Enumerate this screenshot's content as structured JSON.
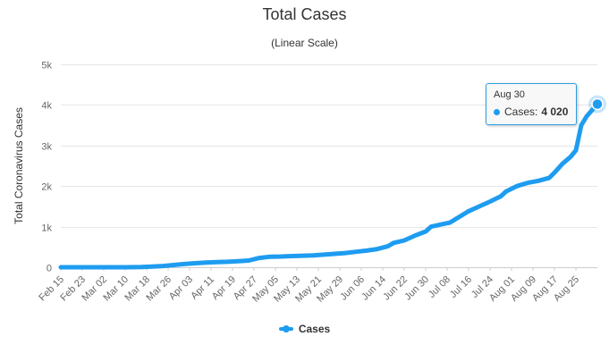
{
  "chart_data": {
    "type": "line",
    "title": "Total Cases",
    "subtitle": "(Linear Scale)",
    "xlabel": "",
    "ylabel": "Total Coronavirus Cases",
    "ylim": [
      0,
      5000
    ],
    "y_ticks": [
      0,
      1000,
      2000,
      3000,
      4000,
      5000
    ],
    "y_tick_labels": [
      "0",
      "1k",
      "2k",
      "3k",
      "4k",
      "5k"
    ],
    "x_tick_labels": [
      "Feb 15",
      "Feb 23",
      "Mar 02",
      "Mar 10",
      "Mar 18",
      "Mar 26",
      "Apr 03",
      "Apr 11",
      "Apr 19",
      "Apr 27",
      "May 05",
      "May 13",
      "May 21",
      "May 29",
      "Jun 06",
      "Jun 14",
      "Jun 22",
      "Jun 30",
      "Jul 08",
      "Jul 16",
      "Jul 24",
      "Aug 01",
      "Aug 09",
      "Aug 17",
      "Aug 25"
    ],
    "grid": true,
    "legend": "bottom-center",
    "series": [
      {
        "name": "Cases",
        "color": "#1e9cf0",
        "points": [
          [
            0,
            0
          ],
          [
            8,
            0
          ],
          [
            16,
            0
          ],
          [
            24,
            0
          ],
          [
            30,
            5
          ],
          [
            34,
            15
          ],
          [
            38,
            30
          ],
          [
            42,
            55
          ],
          [
            46,
            80
          ],
          [
            50,
            100
          ],
          [
            54,
            115
          ],
          [
            58,
            125
          ],
          [
            62,
            135
          ],
          [
            66,
            150
          ],
          [
            70,
            165
          ],
          [
            74,
            230
          ],
          [
            78,
            260
          ],
          [
            82,
            265
          ],
          [
            86,
            275
          ],
          [
            90,
            285
          ],
          [
            94,
            290
          ],
          [
            98,
            310
          ],
          [
            102,
            330
          ],
          [
            106,
            350
          ],
          [
            110,
            380
          ],
          [
            114,
            410
          ],
          [
            118,
            450
          ],
          [
            122,
            520
          ],
          [
            124,
            600
          ],
          [
            128,
            660
          ],
          [
            132,
            780
          ],
          [
            136,
            880
          ],
          [
            138,
            1000
          ],
          [
            142,
            1060
          ],
          [
            145,
            1100
          ],
          [
            148,
            1220
          ],
          [
            152,
            1380
          ],
          [
            156,
            1500
          ],
          [
            160,
            1620
          ],
          [
            164,
            1750
          ],
          [
            166,
            1870
          ],
          [
            170,
            2000
          ],
          [
            174,
            2080
          ],
          [
            178,
            2130
          ],
          [
            182,
            2200
          ],
          [
            184,
            2330
          ],
          [
            187,
            2550
          ],
          [
            190,
            2720
          ],
          [
            192,
            2880
          ],
          [
            194,
            3500
          ],
          [
            196,
            3720
          ],
          [
            198,
            3870
          ],
          [
            200,
            4020
          ]
        ]
      }
    ],
    "tooltip": {
      "date": "Aug 30",
      "series_name": "Cases",
      "value_label": "4 020",
      "value": 4020
    }
  }
}
